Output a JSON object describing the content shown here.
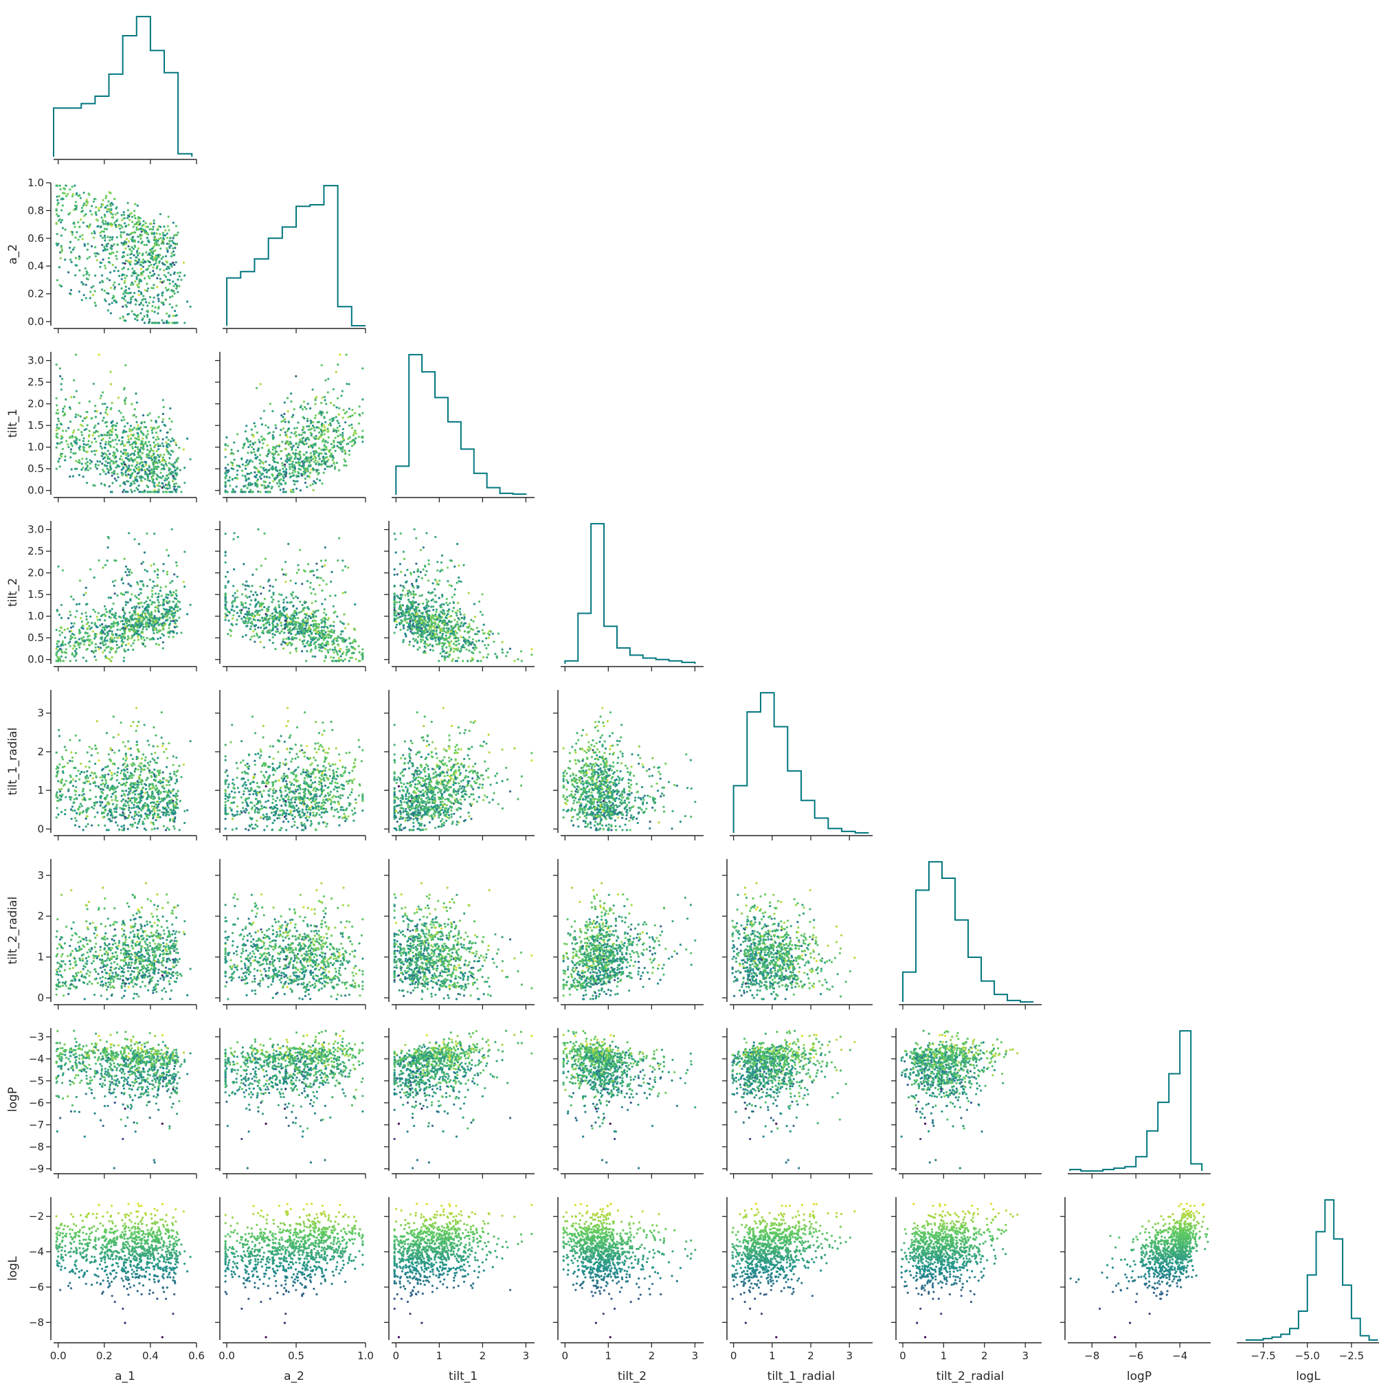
{
  "chart_data": {
    "type": "corner_pairplot",
    "variables": [
      "a_1",
      "a_2",
      "tilt_1",
      "tilt_2",
      "tilt_1_radial",
      "tilt_2_radial",
      "logP",
      "logL"
    ],
    "axis_labels": [
      "a_1",
      "a_2",
      "tilt_1",
      "tilt_2",
      "tilt_1_radial",
      "tilt_2_radial",
      "logP",
      "logL"
    ],
    "ranges": {
      "a_1": [
        -0.02,
        0.6
      ],
      "a_2": [
        -0.03,
        1.0
      ],
      "tilt_1": [
        -0.1,
        3.2
      ],
      "tilt_2": [
        -0.1,
        3.2
      ],
      "tilt_1_radial": [
        -0.1,
        3.6
      ],
      "tilt_2_radial": [
        -0.1,
        3.4
      ],
      "logP": [
        -9.1,
        -2.6
      ],
      "logL": [
        -9.0,
        -0.9
      ]
    },
    "ticks": {
      "a_1": [
        0.0,
        0.2,
        0.4,
        0.6
      ],
      "a_2": [
        0.0,
        0.5,
        1.0
      ],
      "tilt_1": [
        0,
        1,
        2,
        3
      ],
      "tilt_2": [
        0,
        1,
        2,
        3
      ],
      "tilt_1_radial": [
        0,
        1,
        2,
        3
      ],
      "tilt_2_radial": [
        0,
        1,
        2,
        3
      ],
      "logP": [
        -8,
        -6,
        -4
      ],
      "logL": [
        -7.5,
        -5.0,
        -2.5
      ]
    },
    "y_ticks": {
      "a_2": [
        0.0,
        0.2,
        0.4,
        0.6,
        0.8,
        1.0
      ],
      "tilt_1": [
        0.0,
        0.5,
        1.0,
        1.5,
        2.0,
        2.5,
        3.0
      ],
      "tilt_2": [
        0.0,
        0.5,
        1.0,
        1.5,
        2.0,
        2.5,
        3.0
      ],
      "tilt_1_radial": [
        0,
        1,
        2,
        3
      ],
      "tilt_2_radial": [
        0,
        1,
        2,
        3
      ],
      "logP": [
        -9,
        -8,
        -7,
        -6,
        -5,
        -4,
        -3
      ],
      "logL": [
        -8,
        -6,
        -4,
        -2
      ]
    },
    "marginal_histograms": {
      "a_1": {
        "centers": [
          0.01,
          0.07,
          0.13,
          0.19,
          0.25,
          0.31,
          0.37,
          0.43,
          0.49,
          0.55
        ],
        "density": [
          0.33,
          0.33,
          0.36,
          0.41,
          0.56,
          0.82,
          0.95,
          0.72,
          0.57,
          0.02
        ]
      },
      "a_2": {
        "centers": [
          0.05,
          0.15,
          0.25,
          0.35,
          0.45,
          0.55,
          0.65,
          0.75,
          0.85,
          0.95
        ],
        "density": [
          0.3,
          0.34,
          0.42,
          0.55,
          0.62,
          0.75,
          0.76,
          0.88,
          0.12,
          0.0
        ]
      },
      "tilt_1": {
        "centers": [
          0.15,
          0.45,
          0.75,
          1.05,
          1.35,
          1.65,
          1.95,
          2.25,
          2.55,
          2.85
        ],
        "density": [
          0.2,
          0.98,
          0.86,
          0.68,
          0.51,
          0.32,
          0.15,
          0.05,
          0.01,
          0.005
        ]
      },
      "tilt_2": {
        "centers": [
          0.15,
          0.45,
          0.75,
          1.05,
          1.35,
          1.65,
          1.95,
          2.25,
          2.55,
          2.85
        ],
        "density": [
          0.02,
          0.35,
          0.97,
          0.26,
          0.11,
          0.06,
          0.04,
          0.03,
          0.02,
          0.01
        ]
      },
      "tilt_1_radial": {
        "centers": [
          0.175,
          0.525,
          0.875,
          1.225,
          1.575,
          1.925,
          2.275,
          2.625,
          2.975,
          3.325
        ],
        "density": [
          0.32,
          0.82,
          0.95,
          0.72,
          0.42,
          0.22,
          0.1,
          0.03,
          0.01,
          0.0
        ]
      },
      "tilt_2_radial": {
        "centers": [
          0.16,
          0.48,
          0.8,
          1.12,
          1.44,
          1.76,
          2.08,
          2.4,
          2.72,
          3.04
        ],
        "density": [
          0.2,
          0.75,
          0.94,
          0.83,
          0.55,
          0.3,
          0.14,
          0.05,
          0.01,
          0.0
        ]
      },
      "logP": {
        "centers": [
          -8.75,
          -8.25,
          -7.75,
          -7.25,
          -6.75,
          -6.25,
          -5.75,
          -5.25,
          -4.75,
          -4.25,
          -3.75,
          -3.25
        ],
        "density": [
          0.01,
          0.0,
          0.0,
          0.01,
          0.02,
          0.03,
          0.1,
          0.28,
          0.48,
          0.68,
          0.98,
          0.05
        ]
      },
      "logL": {
        "centers": [
          -8.25,
          -7.75,
          -7.25,
          -6.75,
          -6.25,
          -5.75,
          -5.25,
          -4.75,
          -4.25,
          -3.75,
          -3.25,
          -2.75,
          -2.25,
          -1.75,
          -1.25
        ],
        "density": [
          0.0,
          0.0,
          0.01,
          0.02,
          0.04,
          0.08,
          0.2,
          0.45,
          0.75,
          0.97,
          0.7,
          0.38,
          0.15,
          0.03,
          0.0
        ]
      }
    },
    "correlations": {
      "a_2|a_1": -0.8,
      "tilt_1|a_1": -0.45,
      "tilt_1|a_2": 0.7,
      "tilt_2|a_1": 0.5,
      "tilt_2|a_2": -0.45,
      "tilt_2|tilt_1": -0.3,
      "tilt_1_radial|tilt_1": 0.3,
      "tilt_2_radial|tilt_2": 0.3,
      "logP|tilt_1": 0.25,
      "logP|tilt_2": -0.15,
      "logP|tilt_1_radial": 0.2,
      "logP|tilt_2_radial": 0.2,
      "logL|a_2": 0.25,
      "logL|tilt_1_radial": 0.45,
      "logL|tilt_2_radial": 0.5,
      "logL|logP": 0.7
    },
    "colormap": [
      "#440154",
      "#3b528b",
      "#21918c",
      "#5ec962",
      "#fde725"
    ],
    "histogram_color": "#00767f",
    "grid": false,
    "legend": "none"
  }
}
